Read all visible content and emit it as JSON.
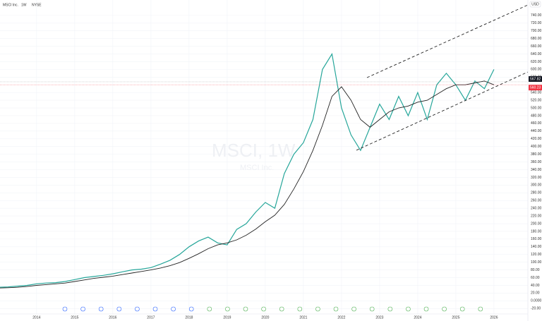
{
  "chart_data": {
    "type": "line",
    "title": "MSCI Inc.",
    "interval": "1W",
    "exchange": "NYSE",
    "currency": "USD",
    "watermark": "MSCI, 1W",
    "x": [
      2013.0,
      2013.25,
      2013.5,
      2013.75,
      2014.0,
      2014.25,
      2014.5,
      2014.75,
      2015.0,
      2015.25,
      2015.5,
      2015.75,
      2016.0,
      2016.25,
      2016.5,
      2016.75,
      2017.0,
      2017.25,
      2017.5,
      2017.75,
      2018.0,
      2018.25,
      2018.5,
      2018.75,
      2019.0,
      2019.25,
      2019.5,
      2019.75,
      2020.0,
      2020.25,
      2020.5,
      2020.75,
      2021.0,
      2021.25,
      2021.5,
      2021.75,
      2022.0,
      2022.25,
      2022.5,
      2022.75,
      2023.0,
      2023.25,
      2023.5,
      2023.75,
      2024.0,
      2024.25,
      2024.5,
      2024.75,
      2025.0,
      2025.25,
      2025.5,
      2025.75,
      2026.0
    ],
    "series": [
      {
        "color": "#26a69a",
        "values": [
          35,
          36,
          38,
          40,
          44,
          46,
          47,
          50,
          55,
          60,
          63,
          66,
          70,
          75,
          80,
          82,
          86,
          95,
          105,
          120,
          140,
          155,
          165,
          150,
          145,
          185,
          200,
          230,
          255,
          240,
          330,
          380,
          410,
          470,
          600,
          640,
          500,
          430,
          390,
          450,
          510,
          470,
          530,
          480,
          540,
          470,
          560,
          590,
          560,
          520,
          570,
          550,
          600
        ]
      },
      {
        "color": "#222222",
        "values": [
          33,
          34,
          35,
          37,
          40,
          42,
          44,
          46,
          50,
          54,
          58,
          61,
          64,
          68,
          72,
          76,
          80,
          85,
          91,
          99,
          110,
          122,
          135,
          145,
          150,
          158,
          170,
          186,
          205,
          222,
          250,
          290,
          335,
          390,
          455,
          530,
          555,
          520,
          470,
          450,
          470,
          490,
          500,
          505,
          515,
          520,
          535,
          550,
          560,
          560,
          565,
          570,
          560
        ]
      }
    ],
    "price_marks": [
      567.82,
      560.23
    ],
    "xlim": [
      2013.04,
      2026.89
    ],
    "xticks": [
      2014,
      2015,
      2016,
      2017,
      2018,
      2019,
      2020,
      2021,
      2022,
      2023,
      2024,
      2025,
      2026
    ],
    "ylim": [
      -25,
      780
    ],
    "yticks": [
      {
        "value": 740,
        "label": "740.00"
      },
      {
        "value": 720,
        "label": "720.00"
      },
      {
        "value": 700,
        "label": "700.00"
      },
      {
        "value": 680,
        "label": "680.00"
      },
      {
        "value": 660,
        "label": "660.00"
      },
      {
        "value": 640,
        "label": "640.00"
      },
      {
        "value": 620,
        "label": "620.00"
      },
      {
        "value": 600,
        "label": "600.00"
      },
      {
        "value": 580,
        "label": "580.00"
      },
      {
        "value": 540,
        "label": "540.00"
      },
      {
        "value": 520,
        "label": "520.00"
      },
      {
        "value": 500,
        "label": "500.00"
      },
      {
        "value": 480,
        "label": "480.00"
      },
      {
        "value": 460,
        "label": "460.00"
      },
      {
        "value": 440,
        "label": "440.00"
      },
      {
        "value": 420,
        "label": "420.00"
      },
      {
        "value": 400,
        "label": "400.00"
      },
      {
        "value": 380,
        "label": "380.00"
      },
      {
        "value": 360,
        "label": "360.00"
      },
      {
        "value": 340,
        "label": "340.00"
      },
      {
        "value": 320,
        "label": "320.00"
      },
      {
        "value": 300,
        "label": "300.00"
      },
      {
        "value": 280,
        "label": "280.00"
      },
      {
        "value": 260,
        "label": "260.00"
      },
      {
        "value": 240,
        "label": "240.00"
      },
      {
        "value": 220,
        "label": "220.00"
      },
      {
        "value": 200,
        "label": "200.00"
      },
      {
        "value": 180,
        "label": "180.00"
      },
      {
        "value": 160,
        "label": "160.00"
      },
      {
        "value": 140,
        "label": "140.00"
      },
      {
        "value": 120,
        "label": "120.00"
      },
      {
        "value": 100,
        "label": "100.00"
      },
      {
        "value": 80,
        "label": "80.00"
      },
      {
        "value": 60,
        "label": "60.00"
      },
      {
        "value": 40,
        "label": "40.00"
      },
      {
        "value": 20,
        "label": "20.00"
      },
      {
        "value": 0,
        "label": "0.0000"
      },
      {
        "value": -20,
        "label": "-20.00"
      }
    ],
    "grid": true
  }
}
